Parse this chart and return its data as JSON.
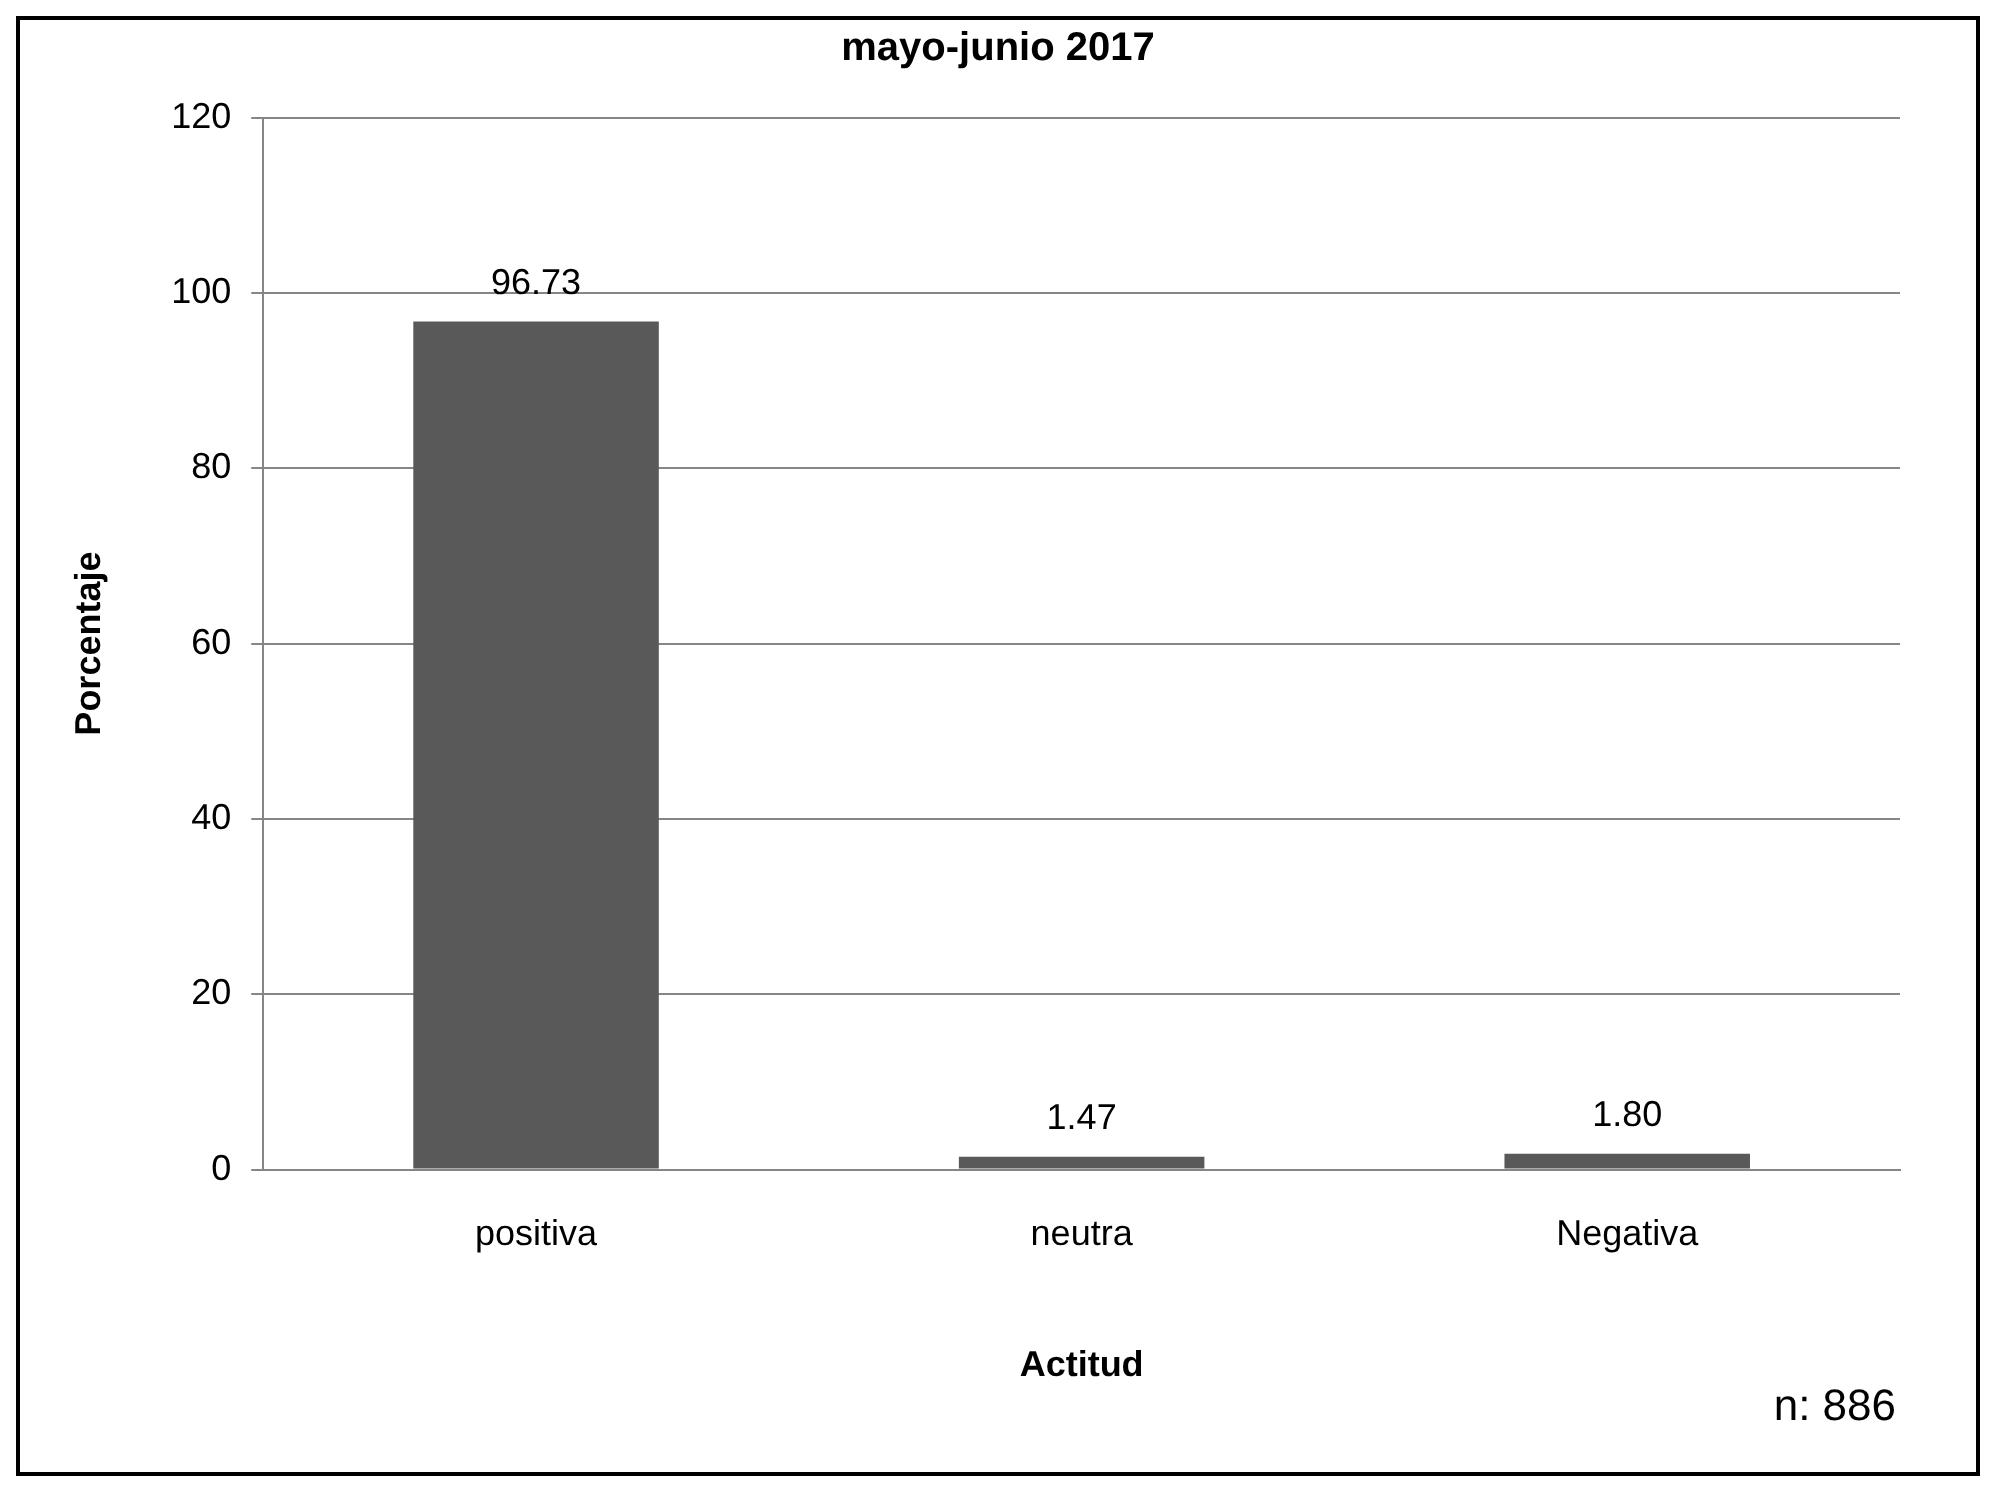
{
  "chart_data": {
    "type": "bar",
    "title": "mayo-junio 2017",
    "xlabel": "Actitud",
    "ylabel": "Porcentaje",
    "categories": [
      "positiva",
      "neutra",
      "Negativa"
    ],
    "values": [
      96.73,
      1.47,
      1.8
    ],
    "color": "#595959",
    "value_labels": [
      "96.73",
      "1.47",
      "1.80"
    ],
    "ylim": [
      0,
      120
    ],
    "yticks": [
      0,
      20,
      40,
      60,
      80,
      100,
      120
    ],
    "grid": "y",
    "legend": false,
    "annotations": [
      "n: 886"
    ]
  }
}
